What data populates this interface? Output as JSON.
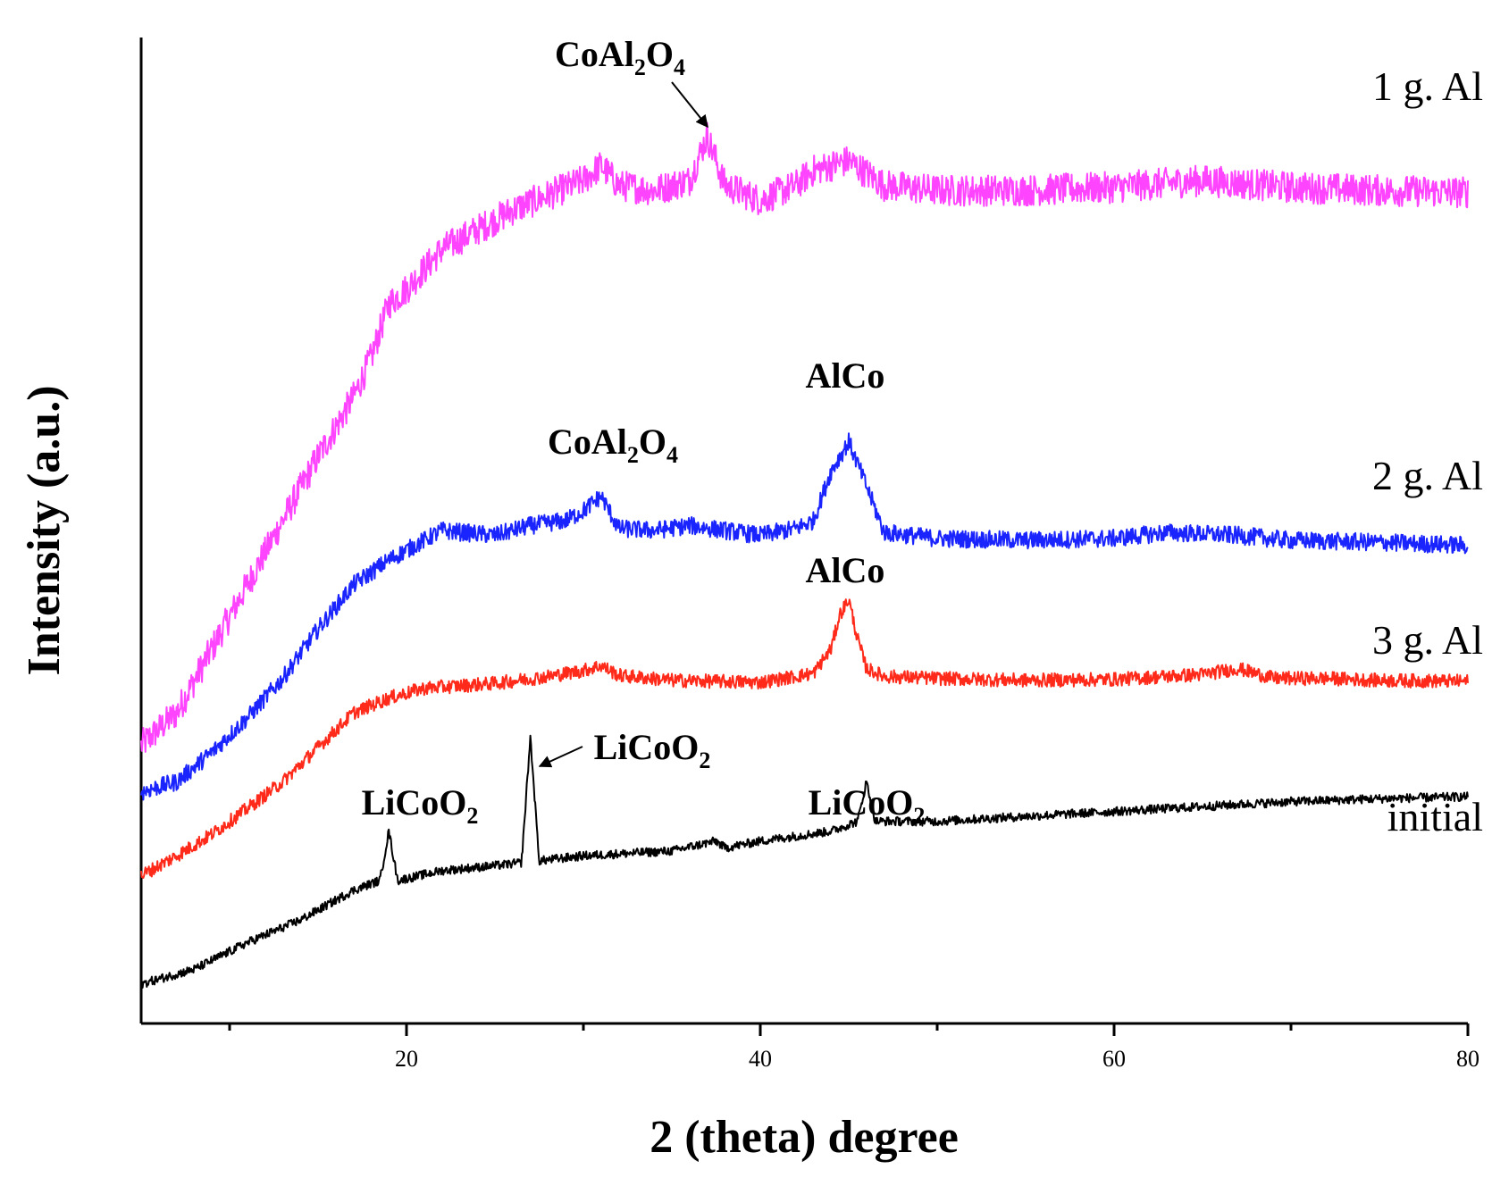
{
  "chart_data": {
    "type": "line",
    "title": "",
    "xlabel": "2 (theta) degree",
    "ylabel": "Intensity (a.u.)",
    "xlim": [
      5,
      80
    ],
    "ylim": [
      0,
      100
    ],
    "x_ticks": [
      20,
      40,
      60,
      80
    ],
    "x_minor_ticks": [
      10,
      30,
      50,
      70
    ],
    "grid": false,
    "legend": "none; series labelled at right end of each trace",
    "series": [
      {
        "name": "1 g. Al",
        "color": "#ff44ff",
        "noise": 1.6,
        "points": [
          [
            5,
            28.2
          ],
          [
            7,
            31.5
          ],
          [
            9,
            38
          ],
          [
            11,
            44.5
          ],
          [
            13,
            51
          ],
          [
            15,
            57.5
          ],
          [
            17,
            63.5
          ],
          [
            18,
            67.5
          ],
          [
            19,
            73
          ],
          [
            20,
            74.5
          ],
          [
            22,
            78.5
          ],
          [
            24,
            80.5
          ],
          [
            26,
            82.5
          ],
          [
            28,
            84
          ],
          [
            30,
            85.5
          ],
          [
            31,
            87
          ],
          [
            32,
            85
          ],
          [
            34,
            84.5
          ],
          [
            36,
            85.5
          ],
          [
            37,
            90
          ],
          [
            38,
            85
          ],
          [
            40,
            83.5
          ],
          [
            42,
            85
          ],
          [
            43,
            86.5
          ],
          [
            45,
            87.5
          ],
          [
            47,
            85
          ],
          [
            50,
            84.5
          ],
          [
            55,
            84.5
          ],
          [
            60,
            84.8
          ],
          [
            65,
            85.5
          ],
          [
            70,
            84.8
          ],
          [
            75,
            84.5
          ],
          [
            80,
            84.3
          ]
        ]
      },
      {
        "name": "2 g. Al",
        "color": "#1a24ff",
        "noise": 0.9,
        "points": [
          [
            5,
            23.5
          ],
          [
            7,
            24.5
          ],
          [
            9,
            27.5
          ],
          [
            11,
            31
          ],
          [
            13,
            35
          ],
          [
            15,
            40
          ],
          [
            17,
            44.5
          ],
          [
            19,
            47
          ],
          [
            21,
            49
          ],
          [
            22,
            50
          ],
          [
            25,
            49.5
          ],
          [
            27,
            50.5
          ],
          [
            29,
            51
          ],
          [
            30,
            52
          ],
          [
            31,
            53.5
          ],
          [
            32,
            50.2
          ],
          [
            34,
            50
          ],
          [
            36,
            50.5
          ],
          [
            38,
            50
          ],
          [
            40,
            49.5
          ],
          [
            42,
            50.2
          ],
          [
            43,
            51
          ],
          [
            44,
            56
          ],
          [
            45,
            59
          ],
          [
            46,
            54.5
          ],
          [
            47,
            49.8
          ],
          [
            50,
            49.2
          ],
          [
            55,
            49
          ],
          [
            60,
            49.2
          ],
          [
            63,
            49.8
          ],
          [
            67,
            49.5
          ],
          [
            70,
            49
          ],
          [
            75,
            48.8
          ],
          [
            80,
            48.5
          ]
        ]
      },
      {
        "name": "3 g. Al",
        "color": "#ff2a1a",
        "noise": 0.7,
        "points": [
          [
            5,
            15
          ],
          [
            7,
            17
          ],
          [
            9,
            19.2
          ],
          [
            11,
            21.8
          ],
          [
            13,
            24.5
          ],
          [
            15,
            28
          ],
          [
            17,
            31.5
          ],
          [
            19,
            33
          ],
          [
            21,
            34
          ],
          [
            25,
            34.5
          ],
          [
            28,
            35.2
          ],
          [
            30,
            35.8
          ],
          [
            31,
            36.3
          ],
          [
            32,
            35.3
          ],
          [
            35,
            34.8
          ],
          [
            40,
            34.6
          ],
          [
            43,
            35.5
          ],
          [
            44,
            38
          ],
          [
            44.5,
            41.5
          ],
          [
            45,
            43
          ],
          [
            45.5,
            39
          ],
          [
            46,
            36
          ],
          [
            47,
            35.2
          ],
          [
            50,
            35
          ],
          [
            55,
            34.8
          ],
          [
            60,
            34.9
          ],
          [
            65,
            35.4
          ],
          [
            67,
            36
          ],
          [
            69,
            35
          ],
          [
            72,
            35
          ],
          [
            75,
            34.8
          ],
          [
            80,
            34.7
          ]
        ]
      },
      {
        "name": "initial",
        "color": "#000000",
        "noise": 0.45,
        "points": [
          [
            5,
            4
          ],
          [
            8,
            5.5
          ],
          [
            11,
            8.2
          ],
          [
            14,
            10.5
          ],
          [
            17,
            13.5
          ],
          [
            18.5,
            14.5
          ],
          [
            19,
            19.5
          ],
          [
            19.5,
            14.5
          ],
          [
            22,
            15.5
          ],
          [
            25,
            16
          ],
          [
            26.5,
            16.3
          ],
          [
            27,
            29
          ],
          [
            27.5,
            16.5
          ],
          [
            30,
            17
          ],
          [
            35,
            17.5
          ],
          [
            37.5,
            18.5
          ],
          [
            38,
            17.8
          ],
          [
            40,
            18.5
          ],
          [
            44,
            19.5
          ],
          [
            45.5,
            20.5
          ],
          [
            46,
            24.5
          ],
          [
            46.5,
            20.5
          ],
          [
            50,
            20.5
          ],
          [
            55,
            21
          ],
          [
            60,
            21.5
          ],
          [
            65,
            22
          ],
          [
            70,
            22.5
          ],
          [
            75,
            22.8
          ],
          [
            80,
            23
          ]
        ]
      }
    ],
    "series_labels": [
      "1 g. Al",
      "2 g. Al",
      "3 g. Al",
      "initial"
    ],
    "peak_annotations": [
      {
        "base": "CoAl",
        "sub1": "2",
        "mid": "O",
        "sub2": "4",
        "x": 37,
        "y": 90,
        "arrow": true
      },
      {
        "base": "CoAl",
        "sub1": "2",
        "mid": "O",
        "sub2": "4",
        "x": 31,
        "y": 54,
        "arrow": false
      },
      {
        "base": "AlCo",
        "x": 45,
        "y": 59,
        "arrow": false
      },
      {
        "base": "AlCo",
        "x": 45,
        "y": 43,
        "arrow": false
      },
      {
        "base": "LiCoO",
        "sub1": "2",
        "x": 19,
        "y": 19.5,
        "arrow": false
      },
      {
        "base": "LiCoO",
        "sub1": "2",
        "x": 27,
        "y": 29,
        "arrow": true
      },
      {
        "base": "LiCoO",
        "sub1": "2",
        "x": 46,
        "y": 24.5,
        "arrow": false
      }
    ]
  }
}
